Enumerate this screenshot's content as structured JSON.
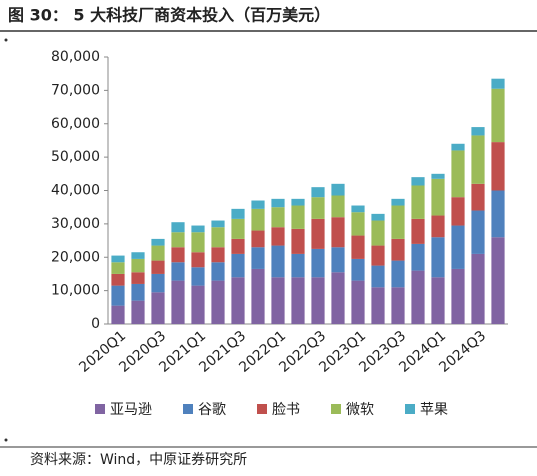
{
  "chart_data": {
    "type": "stacked-bar",
    "title": "图 30：  5 大科技厂商资本投入（百万美元）",
    "source": "资料来源：Wind，中原证券研究所",
    "categories": [
      "2020Q1",
      null,
      "2020Q3",
      null,
      "2021Q1",
      null,
      "2021Q3",
      null,
      "2022Q1",
      null,
      "2022Q3",
      null,
      "2023Q1",
      null,
      "2023Q3",
      null,
      "2024Q1",
      null,
      "2024Q3",
      null
    ],
    "series": [
      {
        "name": "亚马逊",
        "color": "#8064a2",
        "values": [
          5500,
          7000,
          9500,
          13000,
          11500,
          13000,
          14000,
          16500,
          14000,
          14000,
          14000,
          15500,
          13000,
          11000,
          11000,
          16000,
          14000,
          16500,
          21000,
          26000
        ]
      },
      {
        "name": "谷歌",
        "color": "#4f81bd",
        "values": [
          6000,
          5000,
          5500,
          5500,
          5500,
          5500,
          7000,
          6500,
          9500,
          7000,
          8500,
          7500,
          6500,
          6500,
          8000,
          8000,
          12000,
          13000,
          13000,
          14000
        ]
      },
      {
        "name": "脸书",
        "color": "#c0504d",
        "values": [
          3500,
          3500,
          4000,
          4500,
          4500,
          4500,
          4500,
          5000,
          5500,
          7500,
          9000,
          9000,
          7000,
          6000,
          6500,
          7500,
          6500,
          8500,
          8000,
          14500
        ]
      },
      {
        "name": "微软",
        "color": "#9bbb59",
        "values": [
          3500,
          4000,
          4500,
          4500,
          6000,
          6000,
          6000,
          6500,
          6000,
          7000,
          6500,
          6500,
          7000,
          7500,
          10000,
          10000,
          11000,
          14000,
          14500,
          16000
        ]
      },
      {
        "name": "苹果",
        "color": "#4bacc6",
        "values": [
          2000,
          2000,
          2000,
          3000,
          2000,
          2000,
          3000,
          2500,
          2500,
          2000,
          3000,
          3500,
          2000,
          2000,
          2000,
          2500,
          1500,
          2000,
          2500,
          3000
        ]
      }
    ],
    "ylim": [
      0,
      80000
    ],
    "yticks": [
      0,
      {
        "value": 10000,
        "label": "10,000"
      },
      {
        "value": 20000,
        "label": "20,000"
      },
      {
        "value": 30000,
        "label": "30,000"
      },
      {
        "value": 40000,
        "label": "40,000"
      },
      {
        "value": 50000,
        "label": "50,000"
      },
      {
        "value": 60000,
        "label": "60,000"
      },
      {
        "value": 70000,
        "label": "70,000"
      },
      {
        "value": 80000,
        "label": "80,000"
      }
    ],
    "legend": "bottom"
  }
}
